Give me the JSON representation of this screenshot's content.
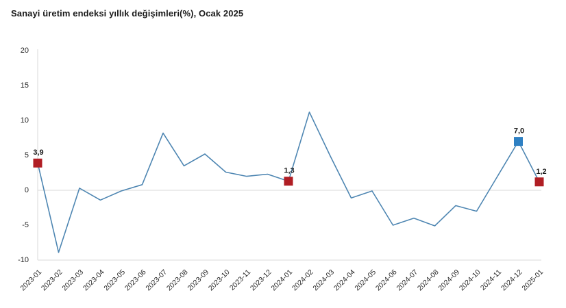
{
  "title": "Sanayi üretim endeksi yıllık değişimleri(%), Ocak 2025",
  "colors": {
    "line": "#4e86b2",
    "marker_red": "#b01e24",
    "marker_blue": "#2e80c3",
    "grid": "#d9d9d9",
    "axis_tick_text": "#262626",
    "point_label_text": "#1a1a1a",
    "background": "#ffffff"
  },
  "chart_data": {
    "type": "line",
    "title": "Sanayi üretim endeksi yıllık değişimleri(%), Ocak 2025",
    "x": [
      "2023-01",
      "2023-02",
      "2023-03",
      "2023-04",
      "2023-05",
      "2023-06",
      "2023-07",
      "2023-08",
      "2023-09",
      "2023-10",
      "2023-11",
      "2023-12",
      "2024-01",
      "2024-02",
      "2024-03",
      "2024-04",
      "2024-05",
      "2024-06",
      "2024-07",
      "2024-08",
      "2024-09",
      "2024-10",
      "2024-11",
      "2024-12",
      "2025-01"
    ],
    "values": [
      3.9,
      -8.9,
      0.3,
      -1.4,
      -0.1,
      0.8,
      8.2,
      3.5,
      5.2,
      2.6,
      2.0,
      2.3,
      1.3,
      11.2,
      4.9,
      -1.1,
      -0.1,
      -5.0,
      -4.0,
      -5.1,
      -2.2,
      -3.0,
      2.0,
      7.0,
      1.2
    ],
    "xlabel": "",
    "ylabel": "",
    "ylim": [
      -10,
      20
    ],
    "yticks": [
      20,
      15,
      10,
      5,
      0,
      -5,
      -10
    ],
    "grid": "zero-line-only",
    "legend_position": "none",
    "annotated_points": [
      {
        "month": "2023-01",
        "index": 0,
        "value": 3.9,
        "label": "3,9",
        "marker": "red-square"
      },
      {
        "month": "2024-01",
        "index": 12,
        "value": 1.3,
        "label": "1,3",
        "marker": "red-square"
      },
      {
        "month": "2024-12",
        "index": 23,
        "value": 7.0,
        "label": "7,0",
        "marker": "blue-square"
      },
      {
        "month": "2025-01",
        "index": 24,
        "value": 1.2,
        "label": "1,2",
        "marker": "red-square"
      }
    ]
  }
}
